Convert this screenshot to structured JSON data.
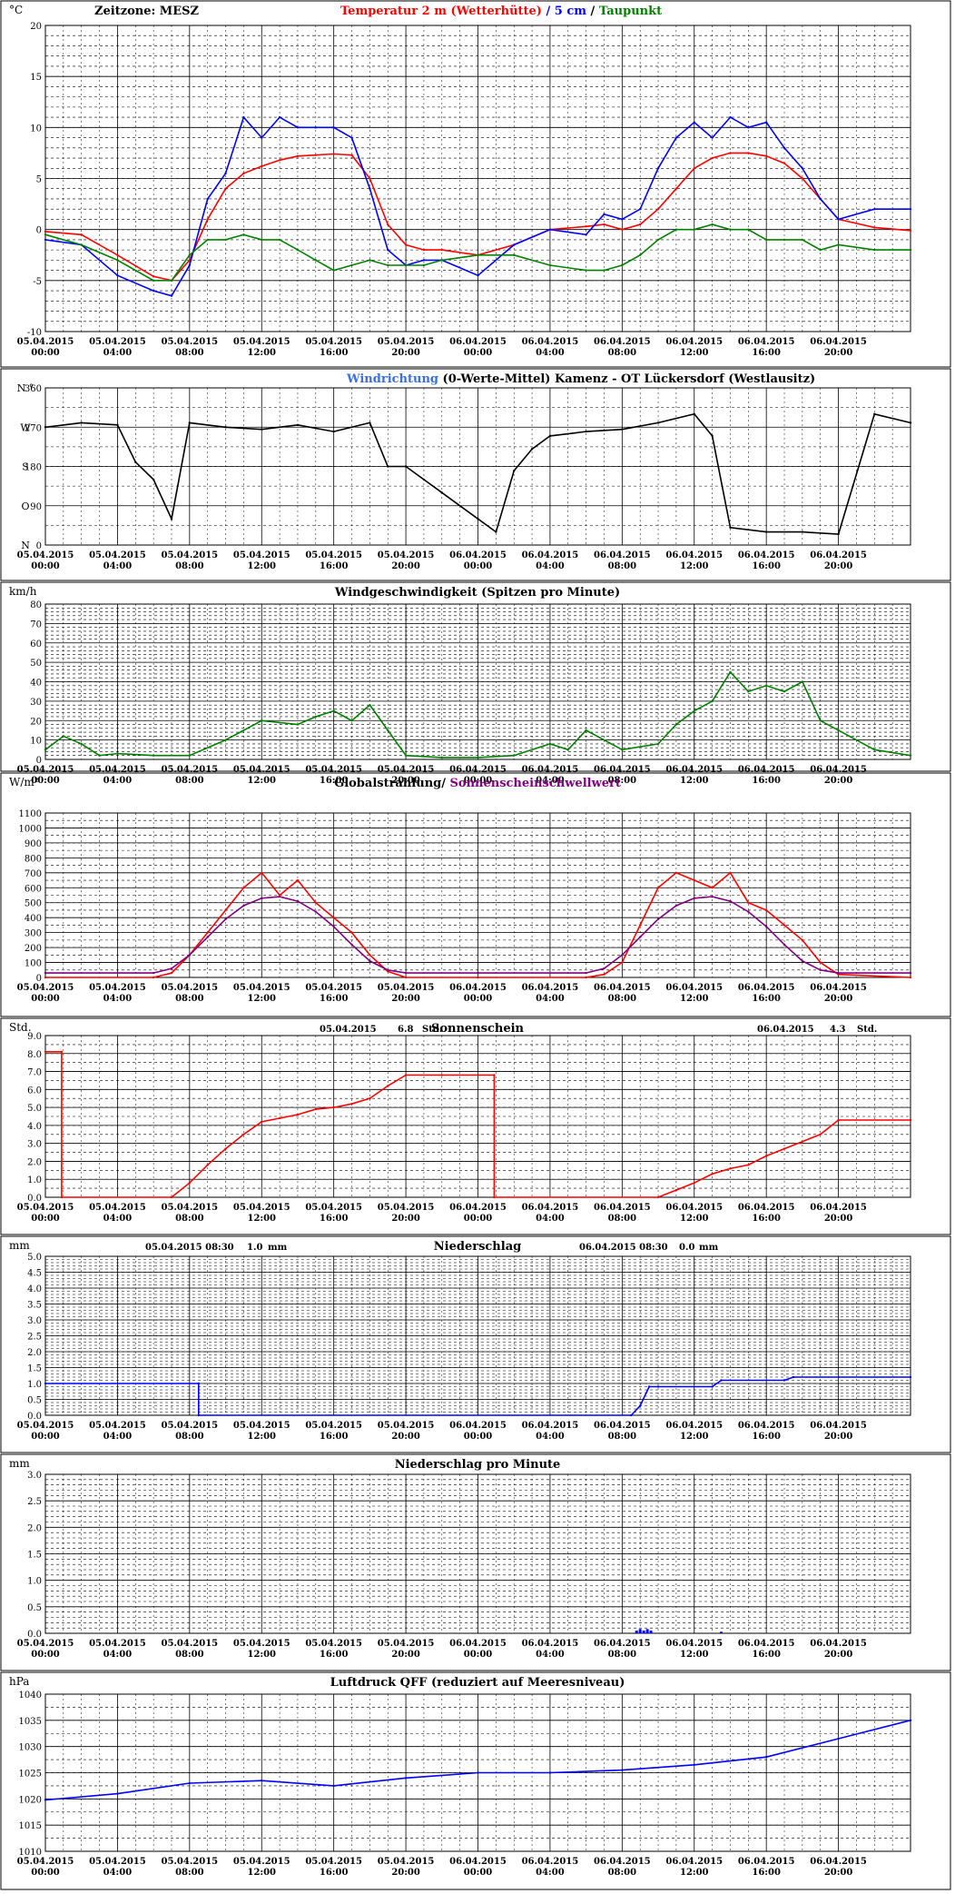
{
  "x_axis": {
    "labels": [
      {
        "date": "05.04.2015",
        "time": "00:00"
      },
      {
        "date": "05.04.2015",
        "time": "04:00"
      },
      {
        "date": "05.04.2015",
        "time": "08:00"
      },
      {
        "date": "05.04.2015",
        "time": "12:00"
      },
      {
        "date": "05.04.2015",
        "time": "16:00"
      },
      {
        "date": "05.04.2015",
        "time": "20:00"
      },
      {
        "date": "06.04.2015",
        "time": "00:00"
      },
      {
        "date": "06.04.2015",
        "time": "04:00"
      },
      {
        "date": "06.04.2015",
        "time": "08:00"
      },
      {
        "date": "06.04.2015",
        "time": "12:00"
      },
      {
        "date": "06.04.2015",
        "time": "16:00"
      },
      {
        "date": "06.04.2015",
        "time": "20:00"
      }
    ]
  },
  "colors": {
    "red": "#ff0000",
    "blue": "#0000ff",
    "green": "#008000",
    "winddir": "#3a6fe0",
    "purple": "#800080",
    "black": "#000000"
  },
  "chart_data": [
    {
      "id": "temperature",
      "type": "line",
      "unit": "°C",
      "title_parts": [
        {
          "text": "Temperatur 2 m (Wetterhütte)",
          "color": "#ff0000"
        },
        {
          "text": " / ",
          "color": "#0000ff"
        },
        {
          "text": "5 cm",
          "color": "#0000ff"
        },
        {
          "text": " / ",
          "color": "#000000"
        },
        {
          "text": "Taupunkt",
          "color": "#008000"
        }
      ],
      "extra_text": "Zeitzone: MESZ",
      "ylim": [
        -10,
        20
      ],
      "yticks": [
        "-10",
        "-5",
        "0",
        "5",
        "10",
        "15",
        "20"
      ],
      "x_hours": [
        0,
        2,
        4,
        6,
        7,
        8,
        9,
        10,
        11,
        12,
        13,
        14,
        15,
        16,
        17,
        18,
        19,
        20,
        21,
        22,
        24,
        26,
        28,
        30,
        31,
        32,
        33,
        34,
        35,
        36,
        37,
        38,
        39,
        40,
        41,
        42,
        43,
        44,
        46,
        48
      ],
      "series": [
        {
          "name": "Temperatur 2 m (Wetterhütte)",
          "color": "#ff0000",
          "values": [
            -0.2,
            -0.5,
            -2.5,
            -4.6,
            -5.0,
            -3.0,
            1.0,
            4.0,
            5.5,
            6.2,
            6.8,
            7.2,
            7.3,
            7.4,
            7.3,
            5.0,
            0.5,
            -1.5,
            -2.0,
            -2.0,
            -2.5,
            -1.5,
            0.0,
            0.3,
            0.5,
            0.0,
            0.5,
            2.0,
            4.0,
            6.0,
            7.0,
            7.5,
            7.5,
            7.2,
            6.5,
            5.0,
            3.0,
            1.0,
            0.2,
            -0.1
          ]
        },
        {
          "name": "5 cm",
          "color": "#0000ff",
          "values": [
            -1.0,
            -1.5,
            -4.5,
            -6.0,
            -6.5,
            -3.5,
            3.0,
            5.5,
            11.0,
            9.0,
            11.0,
            10.0,
            10.0,
            10.0,
            9.0,
            4.0,
            -2.0,
            -3.5,
            -3.0,
            -3.0,
            -4.5,
            -1.5,
            0.0,
            -0.5,
            1.5,
            1.0,
            2.0,
            6.0,
            9.0,
            10.5,
            9.0,
            11.0,
            10.0,
            10.5,
            8.0,
            6.0,
            3.0,
            1.0,
            2.0,
            2.0
          ]
        },
        {
          "name": "Taupunkt",
          "color": "#008000",
          "values": [
            -0.5,
            -1.5,
            -3.0,
            -5.0,
            -5.0,
            -2.5,
            -1.0,
            -1.0,
            -0.5,
            -1.0,
            -1.0,
            -2.0,
            -3.0,
            -4.0,
            -3.5,
            -3.0,
            -3.5,
            -3.5,
            -3.5,
            -3.0,
            -2.5,
            -2.5,
            -3.5,
            -4.0,
            -4.0,
            -3.5,
            -2.5,
            -1.0,
            0.0,
            0.0,
            0.5,
            0.0,
            0.0,
            -1.0,
            -1.0,
            -1.0,
            -2.0,
            -1.5,
            -2.0,
            -2.0
          ]
        }
      ]
    },
    {
      "id": "winddir",
      "type": "line",
      "title_parts": [
        {
          "text": "Windrichtung",
          "color": "#3a6fe0"
        },
        {
          "text": " (0-Werte-Mittel)",
          "color": "#000000"
        },
        {
          "text": "          Kamenz - OT Lückersdorf (Westlausitz)",
          "color": "#000000"
        }
      ],
      "ylim": [
        0,
        360
      ],
      "yticks": [
        {
          "value": 0,
          "deg": "0",
          "compass": "N"
        },
        {
          "value": 90,
          "deg": "90",
          "compass": "O"
        },
        {
          "value": 180,
          "deg": "180",
          "compass": "S"
        },
        {
          "value": 270,
          "deg": "270",
          "compass": "W"
        },
        {
          "value": 360,
          "deg": "360",
          "compass": "N °"
        }
      ],
      "x_hours": [
        0,
        2,
        4,
        5,
        6,
        7,
        8,
        10,
        12,
        14,
        16,
        18,
        19,
        20,
        21,
        22,
        24,
        25,
        26,
        27,
        28,
        30,
        32,
        34,
        36,
        37,
        38,
        40,
        42,
        44,
        46,
        48
      ],
      "series": [
        {
          "name": "Windrichtung",
          "color": "#000000",
          "values": [
            270,
            280,
            275,
            190,
            150,
            60,
            280,
            270,
            265,
            275,
            260,
            280,
            180,
            180,
            150,
            120,
            60,
            30,
            170,
            220,
            250,
            260,
            265,
            280,
            300,
            250,
            40,
            30,
            30,
            25,
            300,
            280
          ]
        }
      ]
    },
    {
      "id": "windspeed",
      "type": "line",
      "unit": "km/h",
      "title_parts": [
        {
          "text": "Windgeschwindigkeit (Spitzen pro Minute)",
          "color": "#000000"
        }
      ],
      "ylim": [
        0,
        80
      ],
      "yticks": [
        "0",
        "10",
        "20",
        "30",
        "40",
        "50",
        "60",
        "70",
        "80"
      ],
      "x_hours": [
        0,
        1,
        2,
        3,
        4,
        6,
        8,
        10,
        12,
        14,
        15,
        16,
        17,
        18,
        19,
        20,
        22,
        24,
        26,
        28,
        29,
        30,
        32,
        34,
        35,
        36,
        37,
        38,
        39,
        40,
        41,
        42,
        43,
        44,
        46,
        48
      ],
      "series": [
        {
          "name": "Windgeschwindigkeit",
          "color": "#008000",
          "values": [
            5,
            12,
            8,
            2,
            3,
            2,
            2,
            10,
            20,
            18,
            22,
            25,
            20,
            28,
            15,
            2,
            1,
            1,
            2,
            8,
            5,
            15,
            5,
            8,
            18,
            25,
            30,
            45,
            35,
            38,
            35,
            40,
            20,
            15,
            5,
            2
          ]
        }
      ]
    },
    {
      "id": "radiation",
      "type": "line",
      "unit": "W/m²",
      "title_parts": [
        {
          "text": "Globalstrahlung/ ",
          "color": "#000000"
        },
        {
          "text": "Sonnenscheinschwellwert",
          "color": "#800080"
        }
      ],
      "ylim": [
        0,
        1100
      ],
      "yticks": [
        "0",
        "100",
        "200",
        "300",
        "400",
        "500",
        "600",
        "700",
        "800",
        "900",
        "1000",
        "1100"
      ],
      "x_hours": [
        0,
        6,
        7,
        8,
        9,
        10,
        11,
        12,
        13,
        14,
        15,
        16,
        17,
        18,
        19,
        20,
        24,
        30,
        31,
        32,
        33,
        34,
        35,
        36,
        37,
        38,
        39,
        40,
        41,
        42,
        43,
        44,
        48
      ],
      "series": [
        {
          "name": "Globalstrahlung",
          "color": "#ff0000",
          "values": [
            0,
            0,
            30,
            150,
            300,
            450,
            600,
            700,
            550,
            650,
            500,
            400,
            300,
            150,
            40,
            0,
            0,
            0,
            20,
            100,
            350,
            600,
            700,
            650,
            600,
            700,
            500,
            450,
            350,
            250,
            100,
            20,
            0
          ]
        },
        {
          "name": "Sonnenscheinschwellwert",
          "color": "#800080",
          "values": [
            30,
            30,
            60,
            150,
            270,
            390,
            480,
            530,
            540,
            510,
            440,
            340,
            220,
            110,
            50,
            30,
            30,
            30,
            60,
            150,
            270,
            390,
            480,
            530,
            540,
            510,
            440,
            340,
            220,
            110,
            50,
            30,
            30
          ]
        }
      ]
    },
    {
      "id": "sunshine",
      "type": "line",
      "unit": "Std.",
      "title_parts": [
        {
          "text": "Sonnenschein",
          "color": "#000000"
        }
      ],
      "annotations": [
        {
          "date": "05.04.2015",
          "value": "6.8",
          "unit": "Std."
        },
        {
          "date": "06.04.2015",
          "value": "4.3",
          "unit": "Std."
        }
      ],
      "ylim": [
        0,
        9
      ],
      "yticks": [
        "0.0",
        "1.0",
        "2.0",
        "3.0",
        "4.0",
        "5.0",
        "6.0",
        "7.0",
        "8.0",
        "9.0"
      ],
      "x_hours": [
        0,
        0.9,
        0.9,
        7.0,
        8.0,
        9.0,
        10.0,
        11.0,
        12.0,
        13.0,
        14.0,
        15.0,
        16.0,
        17.0,
        18.0,
        19.0,
        20.0,
        22.0,
        24.9,
        24.9,
        34.0,
        35.0,
        36.0,
        37.0,
        38.0,
        39.0,
        40.0,
        41.0,
        42.0,
        43.0,
        44.0,
        48.0
      ],
      "series": [
        {
          "name": "Sonnenschein",
          "color": "#ff0000",
          "values": [
            8.1,
            8.1,
            0,
            0,
            0.8,
            1.8,
            2.7,
            3.5,
            4.2,
            4.4,
            4.6,
            4.9,
            5.0,
            5.2,
            5.5,
            6.2,
            6.8,
            6.8,
            6.8,
            0,
            0,
            0.4,
            0.8,
            1.3,
            1.6,
            1.8,
            2.3,
            2.7,
            3.1,
            3.5,
            4.3,
            4.3
          ]
        }
      ]
    },
    {
      "id": "precip",
      "type": "line",
      "unit": "mm",
      "title_parts": [
        {
          "text": "Niederschlag",
          "color": "#000000"
        }
      ],
      "annotations": [
        {
          "date": "05.04.2015 08:30",
          "value": "1.0",
          "unit": "mm"
        },
        {
          "date": "06.04.2015 08:30",
          "value": "0.0",
          "unit": "mm"
        }
      ],
      "ylim": [
        0,
        5
      ],
      "yticks": [
        "0.0",
        "0.5",
        "1.0",
        "1.5",
        "2.0",
        "2.5",
        "3.0",
        "3.5",
        "4.0",
        "4.5",
        "5.0"
      ],
      "x_hours": [
        0,
        8.5,
        8.5,
        32.5,
        33.0,
        33.5,
        34.0,
        37.0,
        37.5,
        41.0,
        41.5,
        48.0
      ],
      "series": [
        {
          "name": "Niederschlag",
          "color": "#0000ff",
          "values": [
            1.0,
            1.0,
            0,
            0,
            0.3,
            0.9,
            0.9,
            0.9,
            1.1,
            1.1,
            1.2,
            1.2
          ]
        }
      ]
    },
    {
      "id": "precip_min",
      "type": "bar",
      "unit": "mm",
      "title_parts": [
        {
          "text": "Niederschlag pro Minute",
          "color": "#000000"
        }
      ],
      "ylim": [
        0,
        3
      ],
      "yticks": [
        "0.0",
        "0.5",
        "1.0",
        "1.5",
        "2.0",
        "2.5",
        "3.0"
      ],
      "x_hours": [
        32.8,
        33.0,
        33.2,
        33.4,
        33.6,
        37.5
      ],
      "series": [
        {
          "name": "Niederschlag pro Minute",
          "color": "#0000ff",
          "values": [
            0.05,
            0.08,
            0.05,
            0.08,
            0.05,
            0.03
          ]
        }
      ]
    },
    {
      "id": "pressure",
      "type": "line",
      "unit": "hPa",
      "title_parts": [
        {
          "text": "Luftdruck QFF (reduziert auf Meeresniveau)",
          "color": "#000000"
        }
      ],
      "ylim": [
        1010,
        1040
      ],
      "yticks": [
        "1010",
        "1015",
        "1020",
        "1025",
        "1030",
        "1035",
        "1040"
      ],
      "x_hours": [
        0,
        4,
        8,
        12,
        16,
        20,
        24,
        28,
        32,
        36,
        40,
        44,
        48
      ],
      "series": [
        {
          "name": "Luftdruck",
          "color": "#0000ff",
          "values": [
            1019.8,
            1021.0,
            1023.0,
            1023.5,
            1022.5,
            1024.0,
            1025.0,
            1025.0,
            1025.5,
            1026.5,
            1028.0,
            1031.5,
            1035.0
          ]
        }
      ]
    }
  ]
}
